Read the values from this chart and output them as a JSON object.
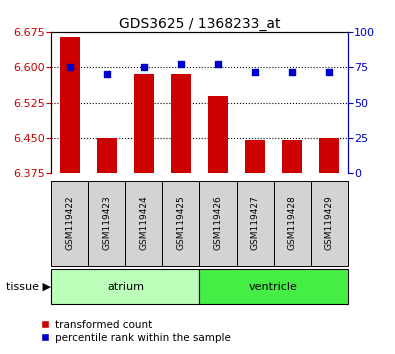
{
  "title": "GDS3625 / 1368233_at",
  "samples": [
    "GSM119422",
    "GSM119423",
    "GSM119424",
    "GSM119425",
    "GSM119426",
    "GSM119427",
    "GSM119428",
    "GSM119429"
  ],
  "red_values": [
    6.665,
    6.45,
    6.585,
    6.585,
    6.54,
    6.445,
    6.445,
    6.45
  ],
  "blue_values": [
    75,
    70,
    75,
    77,
    77,
    72,
    72,
    72
  ],
  "ylim_left": [
    6.375,
    6.675
  ],
  "ylim_right": [
    0,
    100
  ],
  "yticks_left": [
    6.375,
    6.45,
    6.525,
    6.6,
    6.675
  ],
  "yticks_right": [
    0,
    25,
    50,
    75,
    100
  ],
  "bar_color": "#cc0000",
  "dot_color": "#0000cc",
  "bar_bottom": 6.375,
  "tissue_groups": [
    {
      "label": "atrium",
      "start": 0,
      "end": 4,
      "color": "#bbffbb"
    },
    {
      "label": "ventricle",
      "start": 4,
      "end": 8,
      "color": "#44ee44"
    }
  ],
  "legend_bar_label": "transformed count",
  "legend_dot_label": "percentile rank within the sample",
  "bg_color": "#ffffff",
  "plot_bg_color": "#ffffff",
  "tick_label_color_left": "#cc0000",
  "tick_label_color_right": "#0000cc",
  "grid_color": "#000000",
  "bar_width": 0.55,
  "sample_box_color": "#d3d3d3"
}
